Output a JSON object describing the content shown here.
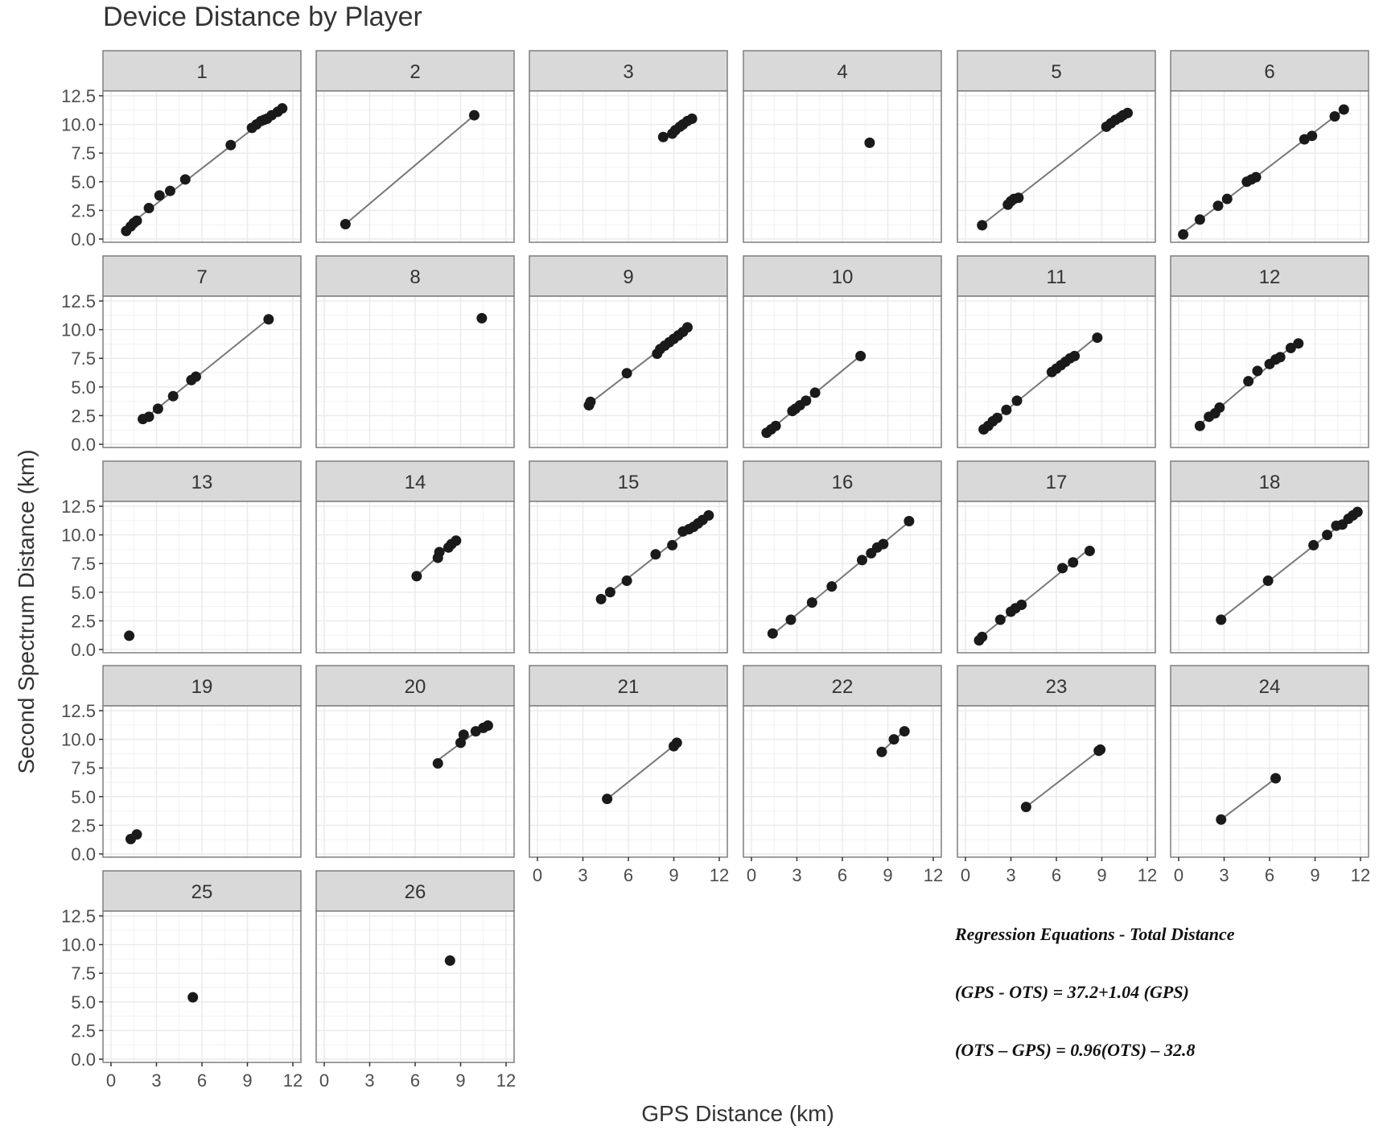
{
  "chart_data": {
    "type": "scatter",
    "layout": "faceted small multiples, 6 columns x 5 rows, each facet with fitted regression line",
    "title": "Device Distance by Player",
    "xlabel": "GPS Distance (km)",
    "ylabel": "Second Spectrum Distance (km)",
    "xlim": [
      0,
      12
    ],
    "ylim": [
      0,
      12.5
    ],
    "x_ticks": [
      0,
      3,
      6,
      9,
      12
    ],
    "x_tick_labels": [
      "0",
      "3",
      "6",
      "9",
      "12"
    ],
    "y_ticks": [
      0,
      2.5,
      5,
      7.5,
      10,
      12.5
    ],
    "y_tick_labels": [
      "0.0",
      "2.5",
      "5.0",
      "7.5",
      "10.0",
      "12.5"
    ],
    "grid": true,
    "colors": {
      "strip_bg": "#d9d9d9",
      "panel_border": "#7f7f7f",
      "grid": "#ebebeb",
      "point": "#1a1a1a",
      "line": "#777777"
    },
    "annotation": {
      "title": "Regression Equations - Total Distance",
      "lines": [
        "(GPS - OTS) = 37.2+1.04 (GPS)",
        "(OTS – GPS) = 0.96(OTS) – 32.8"
      ]
    },
    "facets": [
      {
        "label": "1",
        "x": [
          1.0,
          1.3,
          1.5,
          1.7,
          2.5,
          3.2,
          3.9,
          4.9,
          7.9,
          9.3,
          9.6,
          9.9,
          10.1,
          10.3,
          10.6,
          11.0,
          11.3
        ],
        "y": [
          0.7,
          1.1,
          1.4,
          1.6,
          2.7,
          3.8,
          4.2,
          5.2,
          8.2,
          9.7,
          10.0,
          10.3,
          10.4,
          10.5,
          10.8,
          11.1,
          11.4
        ]
      },
      {
        "label": "2",
        "x": [
          1.4,
          9.9
        ],
        "y": [
          1.3,
          10.8
        ]
      },
      {
        "label": "3",
        "x": [
          8.3,
          8.9,
          9.1,
          9.4,
          9.6,
          9.9,
          10.2
        ],
        "y": [
          8.9,
          9.2,
          9.5,
          9.8,
          10.0,
          10.3,
          10.5
        ]
      },
      {
        "label": "4",
        "x": [
          7.8
        ],
        "y": [
          8.4
        ]
      },
      {
        "label": "5",
        "x": [
          1.1,
          2.8,
          3.0,
          3.2,
          3.5,
          9.3,
          9.6,
          9.9,
          10.2,
          10.4,
          10.7
        ],
        "y": [
          1.2,
          3.0,
          3.3,
          3.5,
          3.6,
          9.8,
          10.1,
          10.4,
          10.6,
          10.8,
          11.0
        ]
      },
      {
        "label": "6",
        "x": [
          0.3,
          1.4,
          2.6,
          3.2,
          4.5,
          4.8,
          5.1,
          8.3,
          8.8,
          10.3,
          10.9
        ],
        "y": [
          0.4,
          1.7,
          2.9,
          3.5,
          5.0,
          5.2,
          5.4,
          8.7,
          9.0,
          10.7,
          11.3
        ]
      },
      {
        "label": "7",
        "x": [
          2.1,
          2.5,
          3.1,
          4.1,
          5.3,
          5.6,
          10.4
        ],
        "y": [
          2.2,
          2.4,
          3.1,
          4.2,
          5.6,
          5.9,
          10.9
        ]
      },
      {
        "label": "8",
        "x": [
          10.4
        ],
        "y": [
          11.0
        ]
      },
      {
        "label": "9",
        "x": [
          3.4,
          3.5,
          5.9,
          7.9,
          8.1,
          8.4,
          8.7,
          9.0,
          9.3,
          9.6,
          9.9
        ],
        "y": [
          3.4,
          3.7,
          6.2,
          7.9,
          8.3,
          8.6,
          8.9,
          9.2,
          9.5,
          9.8,
          10.2
        ]
      },
      {
        "label": "10",
        "x": [
          1.0,
          1.3,
          1.6,
          2.7,
          2.9,
          3.2,
          3.6,
          4.2,
          7.2
        ],
        "y": [
          1.0,
          1.3,
          1.6,
          2.9,
          3.1,
          3.4,
          3.8,
          4.5,
          7.7
        ]
      },
      {
        "label": "11",
        "x": [
          1.2,
          1.5,
          1.8,
          2.1,
          2.7,
          3.4,
          5.7,
          6.0,
          6.3,
          6.6,
          6.9,
          7.2,
          8.7
        ],
        "y": [
          1.3,
          1.6,
          2.0,
          2.3,
          3.0,
          3.8,
          6.3,
          6.6,
          6.9,
          7.2,
          7.5,
          7.7,
          9.3
        ]
      },
      {
        "label": "12",
        "x": [
          1.4,
          2.0,
          2.4,
          2.7,
          4.6,
          5.2,
          6.0,
          6.4,
          6.7,
          7.4,
          7.9
        ],
        "y": [
          1.6,
          2.4,
          2.7,
          3.2,
          5.5,
          6.4,
          7.0,
          7.4,
          7.6,
          8.4,
          8.8
        ]
      },
      {
        "label": "13",
        "x": [
          1.2
        ],
        "y": [
          1.2
        ]
      },
      {
        "label": "14",
        "x": [
          6.1,
          7.5,
          7.6,
          8.2,
          8.4,
          8.7
        ],
        "y": [
          6.4,
          8.0,
          8.5,
          8.9,
          9.2,
          9.5
        ]
      },
      {
        "label": "15",
        "x": [
          4.2,
          4.8,
          5.9,
          7.8,
          8.9,
          9.6,
          10.0,
          10.3,
          10.6,
          10.9,
          11.3
        ],
        "y": [
          4.4,
          5.0,
          6.0,
          8.3,
          9.1,
          10.3,
          10.5,
          10.7,
          11.0,
          11.3,
          11.7
        ]
      },
      {
        "label": "16",
        "x": [
          1.4,
          2.6,
          4.0,
          5.3,
          7.3,
          7.9,
          8.3,
          8.7,
          10.4
        ],
        "y": [
          1.4,
          2.6,
          4.1,
          5.5,
          7.8,
          8.4,
          8.9,
          9.2,
          11.2
        ]
      },
      {
        "label": "17",
        "x": [
          0.9,
          1.1,
          2.3,
          3.0,
          3.3,
          3.7,
          6.4,
          7.1,
          8.2
        ],
        "y": [
          0.8,
          1.1,
          2.6,
          3.3,
          3.6,
          3.9,
          7.1,
          7.6,
          8.6
        ]
      },
      {
        "label": "18",
        "x": [
          2.8,
          5.9,
          8.9,
          9.8,
          10.4,
          10.8,
          11.2,
          11.5,
          11.8
        ],
        "y": [
          2.6,
          6.0,
          9.1,
          10.0,
          10.8,
          10.9,
          11.4,
          11.7,
          12.0
        ]
      },
      {
        "label": "19",
        "x": [
          1.3,
          1.7
        ],
        "y": [
          1.3,
          1.7
        ]
      },
      {
        "label": "20",
        "x": [
          7.5,
          9.0,
          9.2,
          10.0,
          10.5,
          10.8
        ],
        "y": [
          7.9,
          9.7,
          10.4,
          10.7,
          11.0,
          11.2
        ]
      },
      {
        "label": "21",
        "x": [
          4.6,
          9.0,
          9.2
        ],
        "y": [
          4.8,
          9.4,
          9.7
        ]
      },
      {
        "label": "22",
        "x": [
          8.6,
          9.4,
          10.1
        ],
        "y": [
          8.9,
          10.0,
          10.7
        ]
      },
      {
        "label": "23",
        "x": [
          4.0,
          8.8,
          8.9
        ],
        "y": [
          4.1,
          9.0,
          9.1
        ]
      },
      {
        "label": "24",
        "x": [
          2.8,
          6.4
        ],
        "y": [
          3.0,
          6.6
        ]
      },
      {
        "label": "25",
        "x": [
          5.4
        ],
        "y": [
          5.4
        ]
      },
      {
        "label": "26",
        "x": [
          8.3
        ],
        "y": [
          8.6
        ]
      }
    ]
  }
}
